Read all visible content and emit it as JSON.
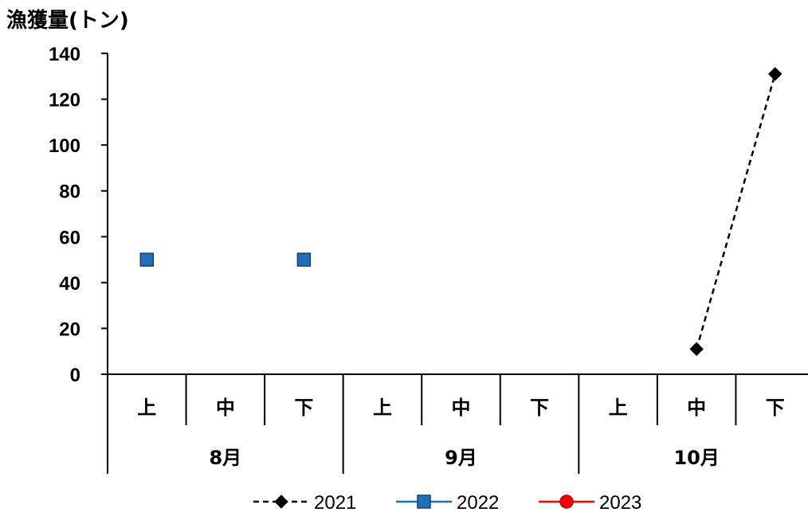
{
  "chart_data": {
    "type": "line",
    "title": "",
    "ylabel": "漁獲量(トン)",
    "xlabel": "",
    "ylim": [
      0,
      140
    ],
    "yticks": [
      0,
      20,
      40,
      60,
      80,
      100,
      120,
      140
    ],
    "categories": [
      "上",
      "中",
      "下",
      "上",
      "中",
      "下",
      "上",
      "中",
      "下"
    ],
    "groups": [
      {
        "label": "8月",
        "span": 3
      },
      {
        "label": "9月",
        "span": 3
      },
      {
        "label": "10月",
        "span": 3
      }
    ],
    "series": [
      {
        "name": "2021",
        "color": "#000000",
        "marker": "diamond",
        "line": "dashed",
        "values": [
          null,
          null,
          null,
          null,
          null,
          null,
          null,
          11,
          131
        ]
      },
      {
        "name": "2022",
        "color": "#1f6fbf",
        "marker": "square",
        "line": "solid",
        "values": [
          50,
          null,
          50,
          null,
          null,
          null,
          null,
          null,
          null
        ]
      },
      {
        "name": "2023",
        "color": "#ff0000",
        "marker": "circle",
        "line": "solid",
        "values": [
          null,
          null,
          null,
          null,
          null,
          null,
          null,
          null,
          null
        ]
      }
    ],
    "legend_position": "bottom",
    "grid": false
  }
}
